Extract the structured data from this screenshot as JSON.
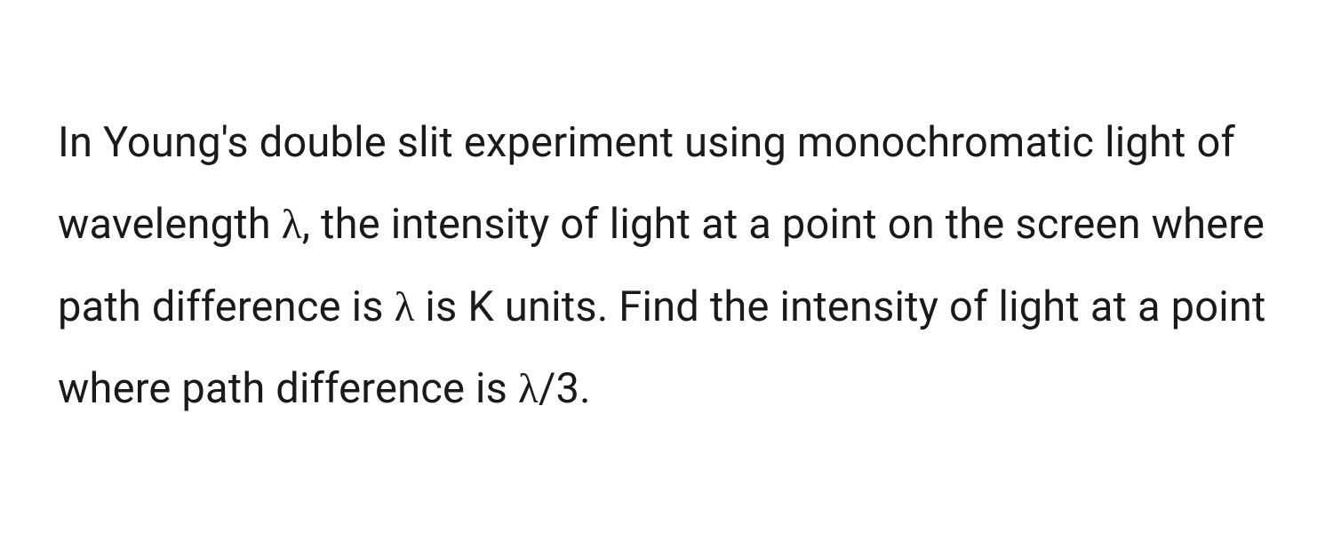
{
  "question": {
    "text_parts": {
      "part1": "In Young's double slit experiment using monochromatic light of wavelength ",
      "lambda1": "λ",
      "part2": ", the intensity of light at a point on the screen where path difference is ",
      "lambda2": "λ",
      "part3": " is K units. Find the intensity of light at a point where path difference is ",
      "lambda3": "λ",
      "part4": "/3."
    },
    "font_size": 47,
    "line_height": 1.95,
    "text_color": "#1a1a1a",
    "background_color": "#ffffff",
    "font_weight": 400
  }
}
